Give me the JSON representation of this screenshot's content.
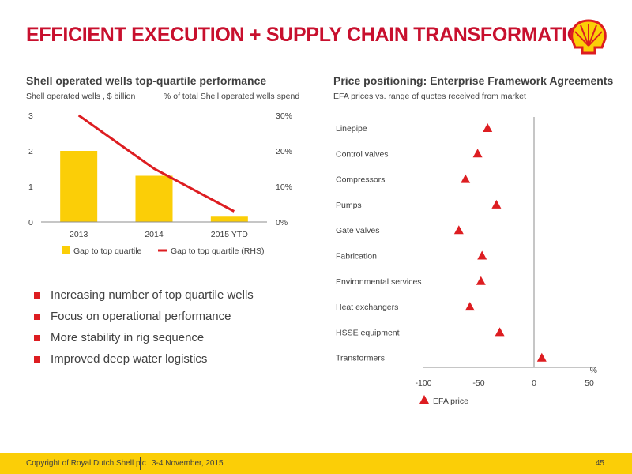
{
  "slide": {
    "title": "EFFICIENT EXECUTION + SUPPLY CHAIN TRANSFORMATION"
  },
  "left": {
    "heading": "Shell operated wells top-quartile performance",
    "subtitle_left": "Shell operated wells , $ billion",
    "subtitle_right": "% of total Shell operated wells spend",
    "bullets": [
      "Increasing number of top quartile wells",
      "Focus on operational performance",
      "More stability in rig sequence",
      "Improved deep water logistics"
    ]
  },
  "right": {
    "heading": "Price positioning: Enterprise Framework Agreements",
    "subtitle": "EFA prices vs. range of quotes received from market"
  },
  "footer": {
    "copyright": "Copyright of Royal Dutch Shell plc",
    "date": "3-4 November, 2015",
    "page": "45"
  },
  "colors": {
    "accent_red": "#C8102E",
    "bar_yellow": "#FBCE07",
    "line_red": "#DD1D21",
    "marker_red": "#DD1D21"
  },
  "chart_data": [
    {
      "type": "bar",
      "title": "Shell operated wells top-quartile performance",
      "categories": [
        "2013",
        "2014",
        "2015 YTD"
      ],
      "series": [
        {
          "name": "Gap to top quartile",
          "type": "bar",
          "axis": "left",
          "values": [
            2.0,
            1.3,
            0.15
          ]
        },
        {
          "name": "Gap  to top quartile (RHS)",
          "type": "line",
          "axis": "right",
          "values": [
            30,
            15,
            3
          ]
        }
      ],
      "ylabel": "Shell operated wells , $ billion",
      "y2label": "% of total Shell operated wells spend",
      "ylim": [
        0,
        3
      ],
      "y2lim": [
        0,
        30
      ],
      "yticks": [
        "0",
        "1",
        "2",
        "3"
      ],
      "y2ticks": [
        "0%",
        "10%",
        "20%",
        "30%"
      ],
      "grid": false,
      "legend": "bottom"
    },
    {
      "type": "scatter",
      "title": "Price positioning: Enterprise Framework Agreements",
      "categories": [
        "Linepipe",
        "Control valves",
        "Compressors",
        "Pumps",
        "Gate valves",
        "Fabrication",
        "Environmental services",
        "Heat exchangers",
        "HSSE equipment",
        "Transformers"
      ],
      "series": [
        {
          "name": "EFA price",
          "values": [
            -42,
            -51,
            -62,
            -34,
            -68,
            -47,
            -48,
            -58,
            -31,
            7
          ]
        }
      ],
      "xlim": [
        -100,
        50
      ],
      "xticks": [
        "-100",
        "-50",
        "0",
        "50"
      ],
      "xunit": "%",
      "grid": false,
      "legend": "bottom"
    }
  ]
}
